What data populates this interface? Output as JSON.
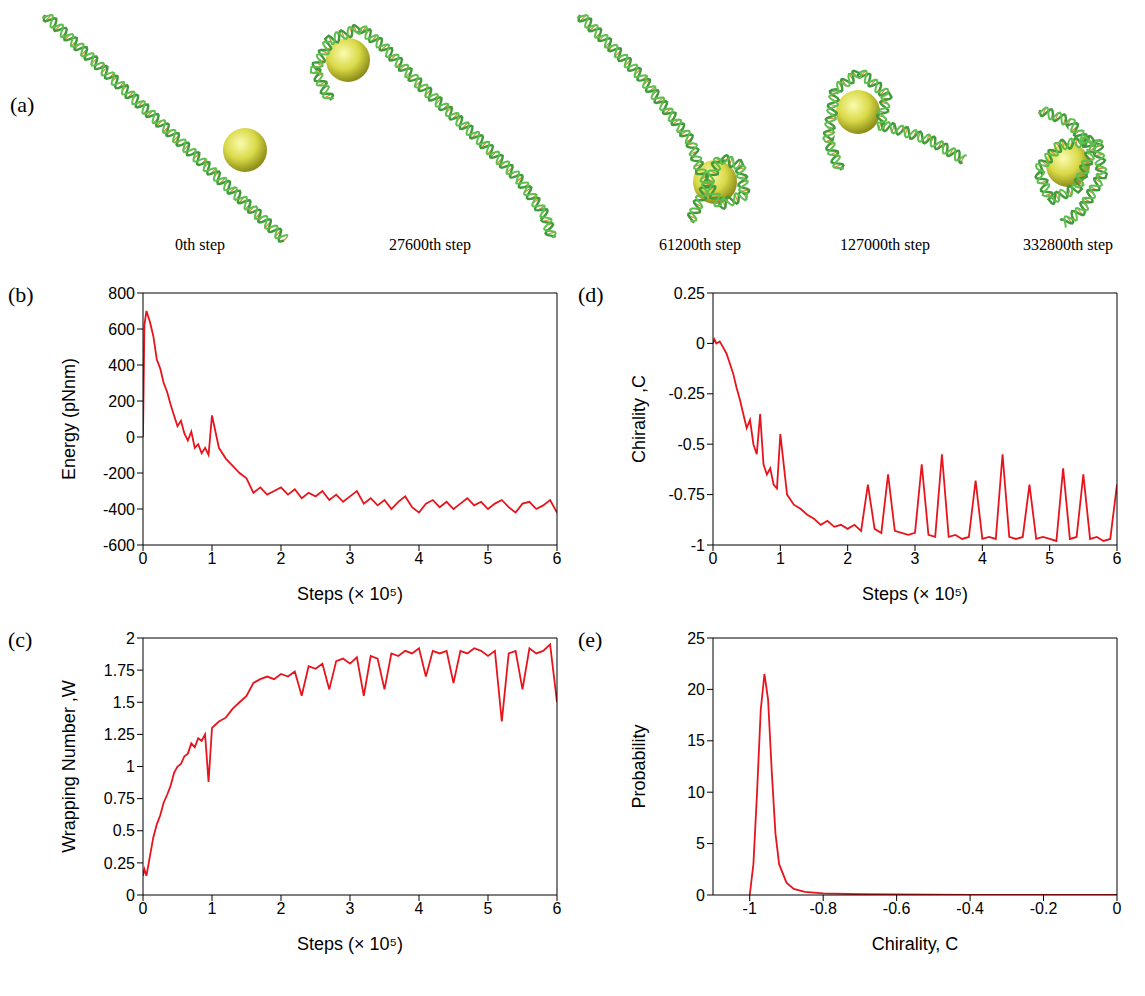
{
  "panel_a": {
    "label": "(a)",
    "captions": [
      "0th step",
      "27600th step",
      "61200th step",
      "127000th step",
      "332800th step"
    ]
  },
  "chart_data": [
    {
      "panel_label": "(b)",
      "type": "line",
      "x_label": "Steps (× 10⁵)",
      "y_label": "Energy (pNnm)",
      "color": "#e8141c",
      "xlim": [
        0,
        6
      ],
      "xticks": [
        0,
        1,
        2,
        3,
        4,
        5,
        6
      ],
      "ylim": [
        -600,
        800
      ],
      "yticks": [
        -600,
        -400,
        -200,
        0,
        200,
        400,
        600,
        800
      ],
      "x": [
        0,
        0.02,
        0.05,
        0.1,
        0.15,
        0.2,
        0.25,
        0.3,
        0.35,
        0.4,
        0.45,
        0.5,
        0.55,
        0.6,
        0.65,
        0.7,
        0.75,
        0.8,
        0.85,
        0.9,
        0.95,
        1,
        1.1,
        1.2,
        1.3,
        1.4,
        1.5,
        1.6,
        1.7,
        1.8,
        1.9,
        2,
        2.1,
        2.2,
        2.3,
        2.4,
        2.5,
        2.6,
        2.7,
        2.8,
        2.9,
        3,
        3.1,
        3.2,
        3.3,
        3.4,
        3.5,
        3.6,
        3.7,
        3.8,
        3.9,
        4,
        4.1,
        4.2,
        4.3,
        4.4,
        4.5,
        4.6,
        4.7,
        4.8,
        4.9,
        5,
        5.1,
        5.2,
        5.3,
        5.4,
        5.5,
        5.6,
        5.7,
        5.8,
        5.9,
        6
      ],
      "values": [
        0,
        620,
        700,
        640,
        560,
        430,
        380,
        300,
        250,
        180,
        120,
        60,
        90,
        20,
        -20,
        30,
        -60,
        -40,
        -90,
        -60,
        -100,
        120,
        -60,
        -120,
        -160,
        -200,
        -230,
        -310,
        -280,
        -320,
        -300,
        -280,
        -320,
        -290,
        -340,
        -310,
        -330,
        -300,
        -350,
        -320,
        -360,
        -330,
        -300,
        -370,
        -340,
        -380,
        -350,
        -400,
        -360,
        -330,
        -390,
        -420,
        -370,
        -350,
        -390,
        -360,
        -400,
        -370,
        -340,
        -380,
        -360,
        -400,
        -370,
        -350,
        -390,
        -420,
        -370,
        -360,
        -400,
        -380,
        -350,
        -420
      ]
    },
    {
      "panel_label": "(d)",
      "type": "line",
      "x_label": "Steps (× 10⁵)",
      "y_label": "Chirality ,C",
      "color": "#e8141c",
      "xlim": [
        0,
        6
      ],
      "xticks": [
        0,
        1,
        2,
        3,
        4,
        5,
        6
      ],
      "ylim": [
        -1,
        0.25
      ],
      "yticks": [
        -1,
        -0.75,
        -0.5,
        -0.25,
        0,
        0.25
      ],
      "x": [
        0,
        0.02,
        0.05,
        0.1,
        0.15,
        0.2,
        0.25,
        0.3,
        0.35,
        0.4,
        0.45,
        0.5,
        0.55,
        0.6,
        0.65,
        0.7,
        0.75,
        0.8,
        0.85,
        0.9,
        0.95,
        1,
        1.1,
        1.2,
        1.3,
        1.4,
        1.5,
        1.6,
        1.7,
        1.8,
        1.9,
        2,
        2.1,
        2.2,
        2.3,
        2.4,
        2.5,
        2.6,
        2.7,
        2.8,
        2.9,
        3,
        3.1,
        3.2,
        3.3,
        3.4,
        3.5,
        3.6,
        3.7,
        3.8,
        3.9,
        4,
        4.1,
        4.2,
        4.3,
        4.4,
        4.5,
        4.6,
        4.7,
        4.8,
        4.9,
        5,
        5.1,
        5.2,
        5.3,
        5.4,
        5.5,
        5.6,
        5.7,
        5.8,
        5.9,
        6
      ],
      "values": [
        0,
        0.02,
        0,
        0.01,
        -0.02,
        -0.05,
        -0.1,
        -0.15,
        -0.22,
        -0.28,
        -0.35,
        -0.42,
        -0.38,
        -0.5,
        -0.55,
        -0.35,
        -0.6,
        -0.65,
        -0.62,
        -0.7,
        -0.72,
        -0.45,
        -0.75,
        -0.8,
        -0.82,
        -0.85,
        -0.87,
        -0.9,
        -0.88,
        -0.91,
        -0.9,
        -0.92,
        -0.9,
        -0.93,
        -0.7,
        -0.92,
        -0.94,
        -0.65,
        -0.93,
        -0.94,
        -0.95,
        -0.94,
        -0.6,
        -0.95,
        -0.96,
        -0.55,
        -0.96,
        -0.95,
        -0.97,
        -0.96,
        -0.68,
        -0.97,
        -0.96,
        -0.97,
        -0.55,
        -0.96,
        -0.97,
        -0.96,
        -0.7,
        -0.97,
        -0.96,
        -0.97,
        -0.98,
        -0.62,
        -0.97,
        -0.96,
        -0.65,
        -0.97,
        -0.96,
        -0.98,
        -0.97,
        -0.7
      ]
    },
    {
      "panel_label": "(c)",
      "type": "line",
      "x_label": "Steps (× 10⁵)",
      "y_label": "Wrapping Number ,W",
      "color": "#e8141c",
      "xlim": [
        0,
        6
      ],
      "xticks": [
        0,
        1,
        2,
        3,
        4,
        5,
        6
      ],
      "ylim": [
        0,
        2
      ],
      "yticks": [
        0,
        0.25,
        0.5,
        0.75,
        1,
        1.25,
        1.5,
        1.75,
        2
      ],
      "x": [
        0,
        0.02,
        0.05,
        0.1,
        0.15,
        0.2,
        0.25,
        0.3,
        0.35,
        0.4,
        0.45,
        0.5,
        0.55,
        0.6,
        0.65,
        0.7,
        0.75,
        0.8,
        0.85,
        0.9,
        0.95,
        1,
        1.1,
        1.2,
        1.3,
        1.4,
        1.5,
        1.6,
        1.7,
        1.8,
        1.9,
        2,
        2.1,
        2.2,
        2.3,
        2.4,
        2.5,
        2.6,
        2.7,
        2.8,
        2.9,
        3,
        3.1,
        3.2,
        3.3,
        3.4,
        3.5,
        3.6,
        3.7,
        3.8,
        3.9,
        4,
        4.1,
        4.2,
        4.3,
        4.4,
        4.5,
        4.6,
        4.7,
        4.8,
        4.9,
        5,
        5.1,
        5.2,
        5.3,
        5.4,
        5.5,
        5.6,
        5.7,
        5.8,
        5.9,
        6
      ],
      "values": [
        0.15,
        0.2,
        0.15,
        0.3,
        0.45,
        0.55,
        0.62,
        0.72,
        0.78,
        0.85,
        0.95,
        1,
        1.02,
        1.08,
        1.1,
        1.18,
        1.15,
        1.22,
        1.2,
        1.25,
        0.88,
        1.3,
        1.35,
        1.38,
        1.45,
        1.5,
        1.55,
        1.65,
        1.68,
        1.7,
        1.68,
        1.72,
        1.7,
        1.74,
        1.55,
        1.78,
        1.76,
        1.8,
        1.6,
        1.82,
        1.84,
        1.8,
        1.85,
        1.55,
        1.86,
        1.84,
        1.6,
        1.88,
        1.86,
        1.9,
        1.88,
        1.92,
        1.7,
        1.9,
        1.88,
        1.9,
        1.65,
        1.9,
        1.88,
        1.92,
        1.9,
        1.86,
        1.9,
        1.35,
        1.88,
        1.9,
        1.6,
        1.92,
        1.88,
        1.9,
        1.95,
        1.5
      ]
    },
    {
      "panel_label": "(e)",
      "type": "line",
      "x_label": "Chirality, C",
      "y_label": "Probability",
      "color": "#e8141c",
      "xlim": [
        -1.1,
        0
      ],
      "xticks": [
        -1,
        -0.8,
        -0.6,
        -0.4,
        -0.2,
        0
      ],
      "ylim": [
        0,
        25
      ],
      "yticks": [
        0,
        5,
        10,
        15,
        20,
        25
      ],
      "x": [
        -1,
        -0.99,
        -0.98,
        -0.97,
        -0.96,
        -0.95,
        -0.94,
        -0.93,
        -0.92,
        -0.9,
        -0.88,
        -0.85,
        -0.8,
        -0.7,
        -0.6,
        -0.4,
        -0.2,
        0
      ],
      "values": [
        0,
        3,
        10,
        18,
        21.5,
        19,
        12,
        6,
        3,
        1.2,
        0.6,
        0.3,
        0.15,
        0.08,
        0.05,
        0.02,
        0.01,
        0
      ]
    }
  ]
}
